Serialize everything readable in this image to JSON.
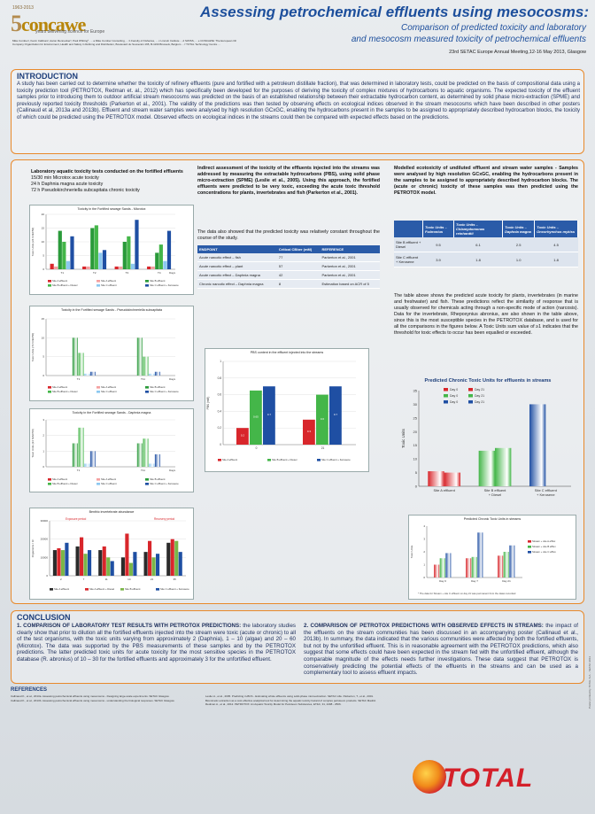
{
  "header": {
    "logo_year": "1963-2013",
    "logo_text": "concawe",
    "logo_five": "5",
    "logo_tag": "years delivering science for Europe",
    "authors": "Mike Comber¹, Kevin Callinan², Aaron Rennecker³, Paul Whiting⁴, ... a Mike Comber Consulting, ... b Faculty of Fisheries, ... c Lincoln Institute ... d SWISS, ... e CONCAWE: The European Oil Company Organization for Environment, Health and Safety in Refining and Distribution, Boulevard du Souverain 165, B-1160 Brussels, Belgium ... f TOTAL Technology Centre ...",
    "title": "Assessing petrochemical effluents using mesocosms:",
    "subtitle_line1": "Comparison of predicted toxicity and laboratory",
    "subtitle_line2": "and mesocosm measured toxicity of petrochemical effluents",
    "conference": "23rd SETAC Europe Annual Meeting,12-16 May 2013, Glasgow"
  },
  "intro": {
    "heading": "INTRODUCTION",
    "text": "A study has been carried out to determine whether the toxicity of refinery effluents (pure and fortified with a petroleum distillate fraction), that was determined in laboratory tests, could be predicted on the basis of compositional data using a toxicity prediction tool (PETROTOX, Redman et. al., 2012) which has specifically been developed for the purposes of deriving the toxicity of complex mixtures of hydrocarbons to aquatic organisms. The expected toxicity of the effluent samples prior to introducing them to outdoor artificial stream mesocosms was predicted on the basis of an established relationship between their extractable hydrocarbon content, as determined by solid phase micro-extraction (SPME) and previously reported toxicity thresholds (Parkerton et al., 2001). The validity of the predictions was then tested by observing effects on ecological indices observed in the stream mesocosms which have been described in other posters (Callinaud et al, 2013a and 2013b). Effluent and stream water samples were analysed by high resolution GCxGC, enabling the hydrocarbons present in the samples to be assigned to appropriately described hydrocarbon blocks, the toxicity of which could be predicted using the PETROTOX model. Observed effects on ecological indices in the streams could then be compared with expected effects based on the predictions."
  },
  "col1": {
    "heading": "Laboratory aquatic toxicity tests conducted on the fortified effluents",
    "line1": "15/30 min Microtox acute toxicity",
    "line2": "24 h Daphnia magna acute toxicity",
    "line3": "72 h Pseudokirchneriella subcapitata chronic toxicity"
  },
  "col2": {
    "heading": "Indirect assessment of the toxicity of the effluents injected into the streams was addressed by measuring the extractable hydrocarbons (PBS), using solid phase micro-extraction (SPME) (Leslie et al., 2005). Using this approach, the fortified effluents were predicted to be very toxic, exceeding the acute toxic threshold concentrations for plants, invertebrates and fish (Parkerton et al., 2001).",
    "para2": "The data also showed that the predicted toxicity was relatively constant throughout the course of the study.",
    "table": {
      "headers": [
        "ENDPOINT",
        "Critical CBber (mM)",
        "REFERENCE"
      ],
      "rows": [
        [
          "Acute narcotic effect – fish",
          "77",
          "Parkerton et al., 2001"
        ],
        [
          "Acute narcotic effect – plant",
          "57",
          "Parkerton et al., 2001"
        ],
        [
          "Acute narcotic effect – Daphnia magna",
          "42",
          "Parkerton et al., 2001"
        ],
        [
          "Chronic narcotic effect – Daphnia magna",
          "8",
          "Estimation based on ACR of 5"
        ]
      ]
    }
  },
  "col3": {
    "heading": "Modelled ecotoxicity of undiluted effluent and stream water samples - Samples were analysed by high resolution GCxGC, enabling the hydrocarbons present in the samples to be assigned to appropriately described hydrocarbon blocks. The (acute or chronic) toxicity of these samples was then predicted using the PETROTOX model.",
    "table": {
      "headers": [
        "",
        "Toxic Units – P.abronius",
        "Toxic Units – Chlamydomonas reinhardtii",
        "Toxic Units – Daphnia magna",
        "Toxic Units – Oncorhynchus mykiss"
      ],
      "rows": [
        [
          "Site B effluent + Diesel",
          "9.5",
          "6.1",
          "2.5",
          "4.5"
        ],
        [
          "Site C effluent + Kerosene",
          "3.9",
          "1.8",
          "1.0",
          "1.8"
        ]
      ]
    },
    "para2": "The table above shows the predicted acute toxicity for plants, invertebrates (in marine and freshwater) and fish. These predictions reflect the similarity of response that is usually observed for chemicals acting through a non-specific mode of action (narcosis). Data for the invertebrate, Rhepoxynius abronius, are also shown in the table above, since this is the most susceptible species in the PETROTOX database, and is used for all the comparisons in the figures below. A Toxic Units sum value of ≥1 indicates that the threshold for toxic effects to occur has been equalled or exceeded."
  },
  "colors": {
    "red": "#d8262b",
    "green": "#44b649",
    "blue": "#1f4fa3",
    "orange_border": "#e8892b",
    "title_blue": "#1d4f9c"
  },
  "charts": {
    "microtox": {
      "title": "Toxicity in the Fortified sewage Sands - Microtox",
      "ylabel": "Toxic Units (24 hr/EC50)",
      "xlabel": "Days",
      "categories": [
        "T1",
        "T2",
        "T3",
        "T4"
      ],
      "legend": [
        "Site A effluent",
        "Site A effluent",
        "Site B effluent",
        "Site B effluent + Diesel",
        "Site C effluent",
        "Site C effluent + Kerosene"
      ]
    },
    "algae": {
      "title": "Toxicity in the Fortified sewage Sands - Pseudokirchneriella subcapitata",
      "ylabel": "Toxic Units (72 hr/EC50)",
      "xlabel": "Days",
      "categories": [
        "T1",
        "T11"
      ],
      "legend": [
        "Site A effluent",
        "Site A effluent",
        "Site B effluent",
        "Site B effluent + Diesel",
        "Site C effluent",
        "Site C effluent + Kerosene"
      ]
    },
    "daphnia": {
      "title": "Toxicity in the Fortified sewage Sands - Daphnia magna",
      "ylabel": "Toxic Units (24 hr/EC50)",
      "xlabel": "Days",
      "categories": [
        "T1",
        "T11"
      ],
      "legend": [
        "Site A effluent",
        "Site A effluent",
        "Site B effluent",
        "Site B effluent + Diesel",
        "Site C effluent",
        "Site C effluent + Kerosene"
      ]
    },
    "benthic": {
      "title": "Benthic invertebrate abundance",
      "ylabel": "Organisms / m²",
      "xlabel": "",
      "labels": [
        "Exposure period",
        "Recovery period"
      ],
      "categories": [
        "2",
        "7",
        "11",
        "14",
        "21",
        "35"
      ],
      "legend": [
        "Site A effluent",
        "Site A effluent + Diesel",
        "Site B effluent",
        "Site C effluent + Kerosene"
      ]
    },
    "pbs": {
      "title": "PBS content in the effluent injected into the streams",
      "ylabel": "PBS (mM)",
      "categories": [
        "0",
        "21"
      ],
      "legend": [
        "Site A effluent",
        "Site B effluent + Diesel",
        "Site C effluent + Kerosene"
      ]
    },
    "chronic_tu": {
      "title": "Predicted Chronic Toxic Units for effluents in streams",
      "ylabel": "Toxic Units",
      "categories": [
        "Site A effluent",
        "Site B effluent + Diesel",
        "Site C effluent + Kerosene"
      ],
      "legend": [
        "Day 0",
        "Day 21",
        "Day 0",
        "Day 21",
        "Day 0",
        "Day 21"
      ]
    },
    "streams": {
      "title": "Predicted Chronic Toxic Units in streams",
      "ylabel": "Toxic Units",
      "categories": [
        "Day 0",
        "Day 7",
        "Day 21"
      ],
      "legend": [
        "Stream + site A efflux",
        "Stream + site B efflux",
        "Stream + site C efflux"
      ],
      "note": "* The data for Stream + site C effluent on day 21 was permanent from the dates recorded"
    }
  },
  "chart_data": [
    {
      "type": "bar",
      "title": "Toxicity in the Fortified sewage Sands - Microtox",
      "categories": [
        "T1",
        "T2",
        "T3",
        "T4"
      ],
      "series": [
        {
          "name": "Site A effluent",
          "values": [
            2,
            1,
            1,
            1
          ]
        },
        {
          "name": "Site A effluent",
          "values": [
            1,
            1,
            1,
            1
          ]
        },
        {
          "name": "Site B effluent",
          "values": [
            14,
            15,
            10,
            6
          ]
        },
        {
          "name": "Site B effluent + Diesel",
          "values": [
            10,
            16,
            12,
            9
          ]
        },
        {
          "name": "Site C effluent",
          "values": [
            3,
            6,
            2,
            3
          ]
        },
        {
          "name": "Site C effluent + Kerosene",
          "values": [
            12,
            7,
            18,
            14
          ]
        }
      ],
      "ylim": [
        0,
        20
      ]
    },
    {
      "type": "bar",
      "title": "Toxicity in the Fortified sewage Sands - Pseudokirchneriella subcapitata",
      "categories": [
        "T1",
        "T11"
      ],
      "series": [
        {
          "name": "Site A effluent",
          "values": [
            0,
            0
          ]
        },
        {
          "name": "Site A effluent",
          "values": [
            0,
            0
          ]
        },
        {
          "name": "Site B effluent",
          "values": [
            10,
            10
          ]
        },
        {
          "name": "Site B effluent + Diesel",
          "values": [
            6,
            5
          ]
        },
        {
          "name": "Site C effluent",
          "values": [
            0.5,
            0.5
          ]
        },
        {
          "name": "Site C effluent + Kerosene",
          "values": [
            1,
            1
          ]
        }
      ],
      "ylim": [
        0,
        15
      ]
    },
    {
      "type": "bar",
      "title": "Toxicity in the Fortified sewage Sands - Daphnia magna",
      "categories": [
        "T1",
        "T11"
      ],
      "series": [
        {
          "name": "Site A effluent",
          "values": [
            0,
            0
          ]
        },
        {
          "name": "Site A effluent",
          "values": [
            0,
            0
          ]
        },
        {
          "name": "Site B effluent",
          "values": [
            1.5,
            1.5
          ]
        },
        {
          "name": "Site B effluent + Diesel",
          "values": [
            2.5,
            1.8
          ]
        },
        {
          "name": "Site C effluent",
          "values": [
            0.2,
            0.2
          ]
        },
        {
          "name": "Site C effluent + Kerosene",
          "values": [
            1,
            0.8
          ]
        }
      ],
      "ylim": [
        0,
        3
      ]
    },
    {
      "type": "bar",
      "title": "Benthic invertebrate abundance",
      "categories": [
        "2",
        "7",
        "11",
        "14",
        "21",
        "35"
      ],
      "series": [
        {
          "name": "Site A effluent",
          "values": [
            14000,
            16000,
            14000,
            10000,
            13000,
            18000
          ]
        },
        {
          "name": "Site A effluent + Diesel",
          "values": [
            15000,
            21000,
            16000,
            23000,
            19000,
            20000
          ]
        },
        {
          "name": "Site B effluent",
          "values": [
            14000,
            12000,
            10000,
            7000,
            10000,
            19000
          ]
        },
        {
          "name": "Site C effluent + Kerosene",
          "values": [
            18000,
            14000,
            8000,
            13000,
            12000,
            13000
          ]
        }
      ],
      "ylim": [
        0,
        30000
      ]
    },
    {
      "type": "bar",
      "title": "PBS content in the effluent injected into the streams",
      "categories": [
        "0",
        "21"
      ],
      "series": [
        {
          "name": "Site A effluent",
          "values": [
            0.2,
            0.3
          ]
        },
        {
          "name": "Site B effluent + Diesel",
          "values": [
            0.65,
            0.6
          ]
        },
        {
          "name": "Site C effluent + Kerosene",
          "values": [
            0.7,
            0.7
          ]
        }
      ],
      "data_labels": [
        [
          "0.2",
          "0.65",
          "0.7"
        ],
        [
          "0.3",
          "0.6",
          "0.7"
        ]
      ],
      "ylim": [
        0,
        1
      ]
    },
    {
      "type": "bar",
      "title": "Predicted Chronic Toxic Units for effluents in streams",
      "categories": [
        "Site A effluent",
        "Site B effluent + Diesel",
        "Site C effluent + Kerosene"
      ],
      "series": [
        {
          "name": "Day 0",
          "values": [
            5.5,
            13,
            30
          ]
        },
        {
          "name": "Day 21",
          "values": [
            5,
            14,
            0
          ]
        }
      ],
      "ylim": [
        0,
        35
      ]
    },
    {
      "type": "bar",
      "title": "Predicted Chronic Toxic Units in streams",
      "categories": [
        "Day 0",
        "Day 7",
        "Day 21"
      ],
      "series": [
        {
          "name": "Stream + site A efflux",
          "values": [
            1,
            1.5,
            1.7
          ]
        },
        {
          "name": "Stream + site B efflux",
          "values": [
            1.5,
            1.6,
            2
          ]
        },
        {
          "name": "Stream + site C efflux",
          "values": [
            1.9,
            3.5,
            2.5
          ]
        }
      ],
      "ylim": [
        0,
        4
      ]
    }
  ],
  "conclusion": {
    "heading": "CONCLUSION",
    "left_head": "1. COMPARISON OF LABORATORY TEST RESULTS WITH PETROTOX PREDICTIONS:",
    "left_text": "the laboratory studies clearly show that prior to dilution all the fortified effluents injected into the stream were toxic (acute or chronic) to all of the test organisms, with the toxic units varying from approximately 2 (Daphnia), 1 – 10 (algae) and 20 – 60 (Microtox). The data was supported by the PBS measurements of these samples and by the PETROTOX predictions. The latter predicted toxic units for acute toxicity for the most sensitive species in the PETROTOX database (R. abronius) of 10 – 30 for the fortified effluents and approximately 3 for the unfortified effluent.",
    "right_head": "2. COMPARISON OF PETROTOX PREDICTIONS WITH OBSERVED EFFECTS IN STREAMS:",
    "right_text": "the impact of the effluents on the stream communities has been discussed in an accompanying poster (Callinaud et al., 2013b). In summary, the data indicated that the various communities were affected by both the fortified effluents, but not by the unfortified effluent. This is in reasonable agreement with the PETROTOX predictions, which also suggest that some effects could have been expected in the stream fed with the unfortified effluent, although the comparable magnitude of the effects needs further investigations. These data suggest that PETROTOX is conservatively predicting the potential effects of the effluents in the streams and can be used as a complementary tool to assess effluent impacts."
  },
  "references": {
    "heading": "REFERENCES",
    "left": "Callinaud K., et al., 2013a. Assessing petrochemical effluents using mesocosms - Designing large-scale experiments. SETAC Glasgow. Callinaud K., et al., 2013b. Assessing petrochemical effluents using mesocosms - understanding the biological responses. SETAC Glasgow.",
    "right": "Leslie H., et al., 2005. Predicting in-BCS - Estimating whole effluents using solid-phase microextraction. SETAC Lille. Parkerton, T., et al., 2001. Biomimetic extraction as a cost effective analytical tool for determining the aquatic toxicity hazard of complex petroleum products. SETAC Madrid. Redman A., et al., 2012. PETROTOX: An Aquatic Toxicity Model for Petroleum Substances, ET&C, 31, 2498 - 2506."
  },
  "footer": {
    "brand": "TOTAL",
    "side_text": "Poster printed by TOTAL S.A. - SETAC 2013"
  }
}
